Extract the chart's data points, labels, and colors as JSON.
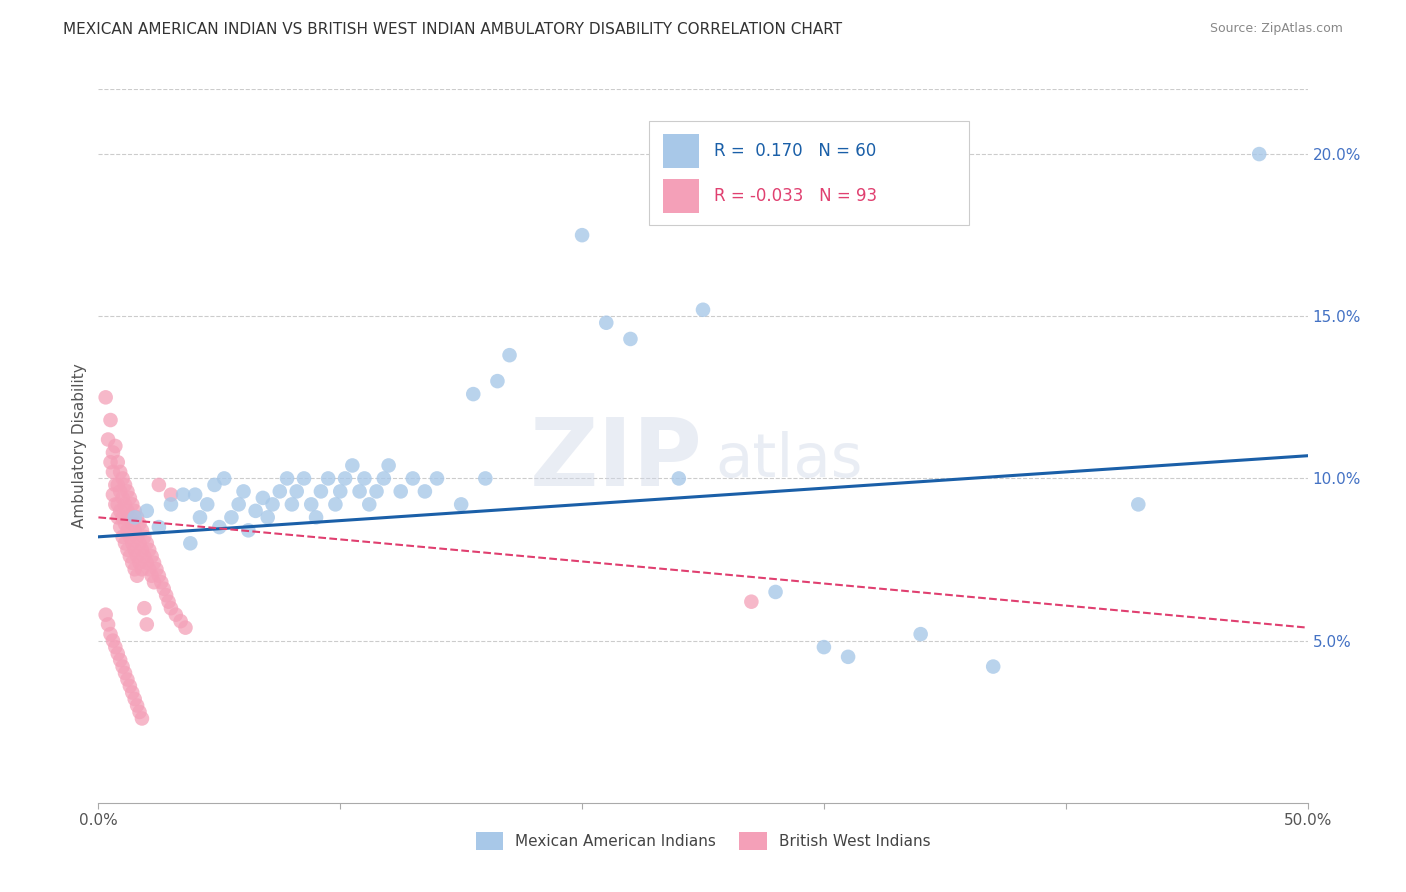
{
  "title": "MEXICAN AMERICAN INDIAN VS BRITISH WEST INDIAN AMBULATORY DISABILITY CORRELATION CHART",
  "source": "Source: ZipAtlas.com",
  "ylabel": "Ambulatory Disability",
  "xlim": [
    0.0,
    0.5
  ],
  "ylim": [
    0.0,
    0.22
  ],
  "xtick_vals": [
    0.0,
    0.1,
    0.2,
    0.3,
    0.4,
    0.5
  ],
  "xtick_labels": [
    "0.0%",
    "",
    "",
    "",
    "",
    "50.0%"
  ],
  "yticks_right": [
    0.05,
    0.1,
    0.15,
    0.2
  ],
  "ytick_right_labels": [
    "5.0%",
    "10.0%",
    "15.0%",
    "20.0%"
  ],
  "blue_R": "0.170",
  "blue_N": "60",
  "pink_R": "-0.033",
  "pink_N": "93",
  "blue_color": "#a8c8e8",
  "pink_color": "#f4a0b8",
  "blue_line_color": "#1a5fa8",
  "pink_line_color": "#e04070",
  "blue_scatter": [
    [
      0.015,
      0.088
    ],
    [
      0.02,
      0.09
    ],
    [
      0.025,
      0.085
    ],
    [
      0.03,
      0.092
    ],
    [
      0.035,
      0.095
    ],
    [
      0.038,
      0.08
    ],
    [
      0.04,
      0.095
    ],
    [
      0.042,
      0.088
    ],
    [
      0.045,
      0.092
    ],
    [
      0.048,
      0.098
    ],
    [
      0.05,
      0.085
    ],
    [
      0.052,
      0.1
    ],
    [
      0.055,
      0.088
    ],
    [
      0.058,
      0.092
    ],
    [
      0.06,
      0.096
    ],
    [
      0.062,
      0.084
    ],
    [
      0.065,
      0.09
    ],
    [
      0.068,
      0.094
    ],
    [
      0.07,
      0.088
    ],
    [
      0.072,
      0.092
    ],
    [
      0.075,
      0.096
    ],
    [
      0.078,
      0.1
    ],
    [
      0.08,
      0.092
    ],
    [
      0.082,
      0.096
    ],
    [
      0.085,
      0.1
    ],
    [
      0.088,
      0.092
    ],
    [
      0.09,
      0.088
    ],
    [
      0.092,
      0.096
    ],
    [
      0.095,
      0.1
    ],
    [
      0.098,
      0.092
    ],
    [
      0.1,
      0.096
    ],
    [
      0.102,
      0.1
    ],
    [
      0.105,
      0.104
    ],
    [
      0.108,
      0.096
    ],
    [
      0.11,
      0.1
    ],
    [
      0.112,
      0.092
    ],
    [
      0.115,
      0.096
    ],
    [
      0.118,
      0.1
    ],
    [
      0.12,
      0.104
    ],
    [
      0.125,
      0.096
    ],
    [
      0.13,
      0.1
    ],
    [
      0.135,
      0.096
    ],
    [
      0.14,
      0.1
    ],
    [
      0.15,
      0.092
    ],
    [
      0.155,
      0.126
    ],
    [
      0.16,
      0.1
    ],
    [
      0.165,
      0.13
    ],
    [
      0.17,
      0.138
    ],
    [
      0.2,
      0.175
    ],
    [
      0.21,
      0.148
    ],
    [
      0.22,
      0.143
    ],
    [
      0.24,
      0.1
    ],
    [
      0.25,
      0.152
    ],
    [
      0.28,
      0.065
    ],
    [
      0.3,
      0.048
    ],
    [
      0.31,
      0.045
    ],
    [
      0.34,
      0.052
    ],
    [
      0.37,
      0.042
    ],
    [
      0.43,
      0.092
    ],
    [
      0.48,
      0.2
    ]
  ],
  "pink_scatter": [
    [
      0.003,
      0.125
    ],
    [
      0.004,
      0.112
    ],
    [
      0.005,
      0.118
    ],
    [
      0.005,
      0.105
    ],
    [
      0.006,
      0.108
    ],
    [
      0.006,
      0.102
    ],
    [
      0.006,
      0.095
    ],
    [
      0.007,
      0.11
    ],
    [
      0.007,
      0.098
    ],
    [
      0.007,
      0.092
    ],
    [
      0.008,
      0.105
    ],
    [
      0.008,
      0.098
    ],
    [
      0.008,
      0.092
    ],
    [
      0.008,
      0.088
    ],
    [
      0.009,
      0.102
    ],
    [
      0.009,
      0.096
    ],
    [
      0.009,
      0.09
    ],
    [
      0.009,
      0.085
    ],
    [
      0.01,
      0.1
    ],
    [
      0.01,
      0.094
    ],
    [
      0.01,
      0.088
    ],
    [
      0.01,
      0.082
    ],
    [
      0.011,
      0.098
    ],
    [
      0.011,
      0.092
    ],
    [
      0.011,
      0.086
    ],
    [
      0.011,
      0.08
    ],
    [
      0.012,
      0.096
    ],
    [
      0.012,
      0.09
    ],
    [
      0.012,
      0.084
    ],
    [
      0.012,
      0.078
    ],
    [
      0.013,
      0.094
    ],
    [
      0.013,
      0.088
    ],
    [
      0.013,
      0.082
    ],
    [
      0.013,
      0.076
    ],
    [
      0.014,
      0.092
    ],
    [
      0.014,
      0.086
    ],
    [
      0.014,
      0.08
    ],
    [
      0.014,
      0.074
    ],
    [
      0.015,
      0.09
    ],
    [
      0.015,
      0.084
    ],
    [
      0.015,
      0.078
    ],
    [
      0.015,
      0.072
    ],
    [
      0.016,
      0.088
    ],
    [
      0.016,
      0.082
    ],
    [
      0.016,
      0.076
    ],
    [
      0.016,
      0.07
    ],
    [
      0.017,
      0.086
    ],
    [
      0.017,
      0.08
    ],
    [
      0.017,
      0.074
    ],
    [
      0.018,
      0.084
    ],
    [
      0.018,
      0.078
    ],
    [
      0.018,
      0.072
    ],
    [
      0.019,
      0.082
    ],
    [
      0.019,
      0.076
    ],
    [
      0.02,
      0.08
    ],
    [
      0.02,
      0.074
    ],
    [
      0.021,
      0.078
    ],
    [
      0.021,
      0.072
    ],
    [
      0.022,
      0.076
    ],
    [
      0.022,
      0.07
    ],
    [
      0.023,
      0.074
    ],
    [
      0.023,
      0.068
    ],
    [
      0.024,
      0.072
    ],
    [
      0.025,
      0.07
    ],
    [
      0.026,
      0.068
    ],
    [
      0.027,
      0.066
    ],
    [
      0.028,
      0.064
    ],
    [
      0.029,
      0.062
    ],
    [
      0.03,
      0.06
    ],
    [
      0.032,
      0.058
    ],
    [
      0.034,
      0.056
    ],
    [
      0.036,
      0.054
    ],
    [
      0.003,
      0.058
    ],
    [
      0.004,
      0.055
    ],
    [
      0.005,
      0.052
    ],
    [
      0.006,
      0.05
    ],
    [
      0.007,
      0.048
    ],
    [
      0.008,
      0.046
    ],
    [
      0.009,
      0.044
    ],
    [
      0.01,
      0.042
    ],
    [
      0.011,
      0.04
    ],
    [
      0.012,
      0.038
    ],
    [
      0.013,
      0.036
    ],
    [
      0.014,
      0.034
    ],
    [
      0.015,
      0.032
    ],
    [
      0.016,
      0.03
    ],
    [
      0.017,
      0.028
    ],
    [
      0.018,
      0.026
    ],
    [
      0.019,
      0.06
    ],
    [
      0.02,
      0.055
    ],
    [
      0.025,
      0.098
    ],
    [
      0.03,
      0.095
    ],
    [
      0.27,
      0.062
    ]
  ],
  "blue_trendline_x": [
    0.0,
    0.5
  ],
  "blue_trendline_y": [
    0.082,
    0.107
  ],
  "pink_trendline_x": [
    0.0,
    0.5
  ],
  "pink_trendline_y": [
    0.088,
    0.054
  ],
  "legend_label_blue": "Mexican American Indians",
  "legend_label_pink": "British West Indians",
  "watermark_zip": "ZIP",
  "watermark_atlas": "atlas",
  "background_color": "#ffffff",
  "grid_color": "#cccccc",
  "title_fontsize": 11,
  "source_fontsize": 9,
  "axis_fontsize": 11
}
